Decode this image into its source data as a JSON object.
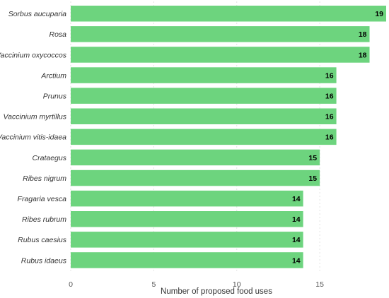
{
  "chart_data": {
    "type": "bar",
    "orientation": "horizontal",
    "categories": [
      "Sorbus aucuparia",
      "Rosa",
      "Vaccinium oxycoccos",
      "Arctium",
      "Prunus",
      "Vaccinium myrtillus",
      "Vaccinium vitis-idaea",
      "Crataegus",
      "Ribes nigrum",
      "Fragaria vesca",
      "Ribes rubrum",
      "Rubus caesius",
      "Rubus idaeus"
    ],
    "values": [
      19,
      18,
      18,
      16,
      16,
      16,
      16,
      15,
      15,
      14,
      14,
      14,
      14
    ],
    "title": "",
    "xlabel": "Number of proposed food uses",
    "ylabel": "",
    "xlim": [
      0,
      19
    ],
    "xticks": [
      0,
      5,
      10,
      15
    ],
    "grid": "vertical dashed",
    "bar_color": "#6dd47e",
    "data_labels": "inside bar end, bold"
  }
}
